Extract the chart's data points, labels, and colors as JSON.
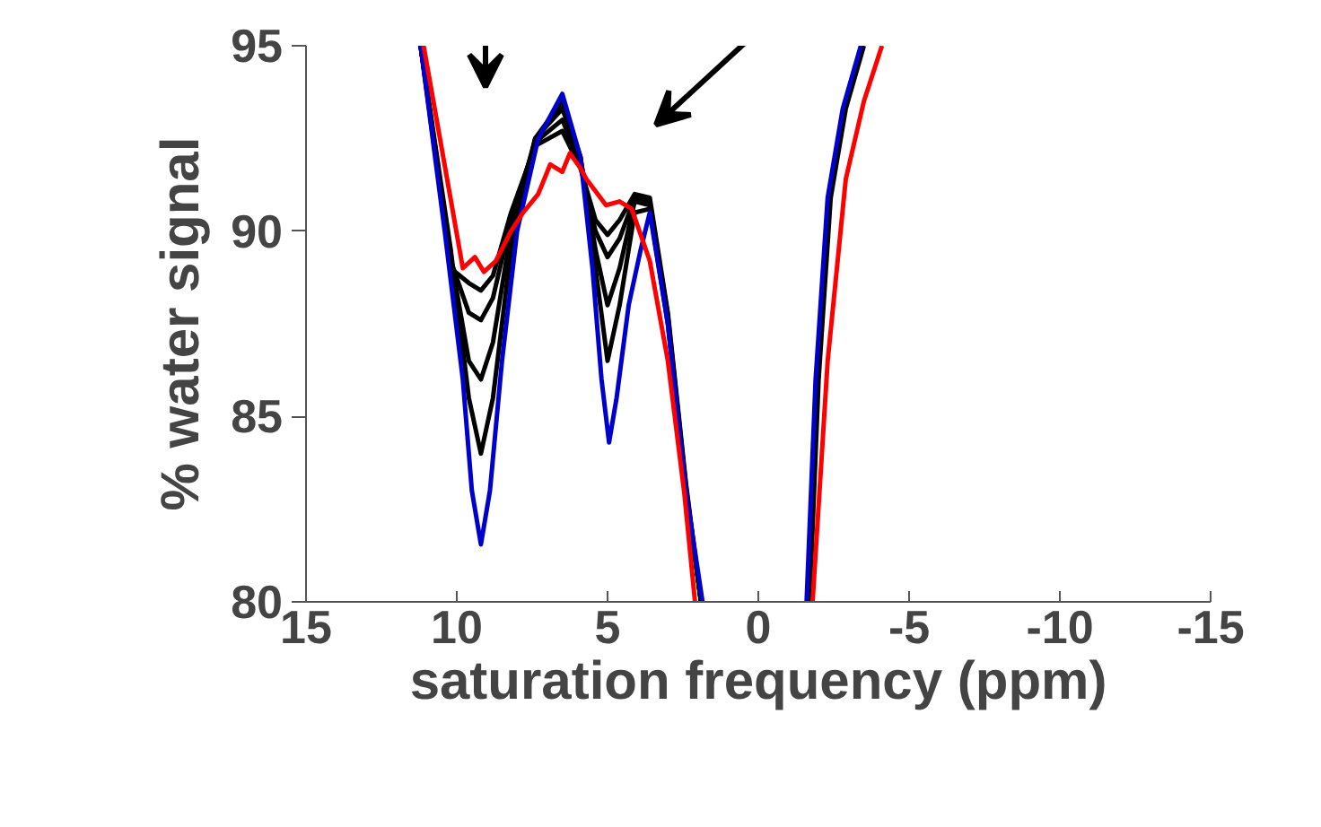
{
  "chart_data": {
    "type": "line",
    "xlabel": "saturation frequency (ppm)",
    "ylabel": "% water signal",
    "xlim": [
      15,
      -15
    ],
    "ylim": [
      80,
      95
    ],
    "xticks": [
      15,
      10,
      5,
      0,
      -5,
      -10,
      -15
    ],
    "yticks": [
      80,
      85,
      90,
      95
    ],
    "grid": false,
    "marker": "none",
    "line_style": "solid",
    "series": [
      {
        "color": "#000000",
        "x": [
          11.2,
          10.2,
          9.6,
          9.2,
          8.8,
          8.2,
          7.4,
          6.5,
          5.9,
          5.4,
          5.0,
          4.6,
          4.1,
          3.6,
          3.0,
          2.4,
          1.9
        ],
        "values": [
          95,
          89.5,
          85.5,
          84.0,
          85.5,
          89.5,
          92.5,
          93.5,
          92.0,
          89.0,
          86.5,
          88.0,
          90.5,
          90.6,
          87.5,
          83.0,
          80
        ]
      },
      {
        "color": "#000000",
        "x": [
          11.2,
          10.2,
          9.6,
          9.2,
          8.8,
          8.2,
          7.4,
          6.5,
          5.9,
          5.4,
          5.0,
          4.6,
          4.1,
          3.6,
          3.0,
          2.4,
          1.9
        ],
        "values": [
          95,
          89.3,
          86.5,
          86.0,
          87.0,
          90.0,
          92.5,
          93.3,
          92.0,
          89.5,
          88.0,
          89.0,
          90.8,
          90.7,
          87.6,
          83.0,
          80
        ]
      },
      {
        "color": "#000000",
        "x": [
          11.2,
          10.2,
          9.6,
          9.2,
          8.8,
          8.2,
          7.4,
          6.5,
          5.9,
          5.4,
          5.0,
          4.6,
          4.1,
          3.6,
          3.0,
          2.4,
          1.9
        ],
        "values": [
          95,
          89.2,
          87.8,
          87.6,
          88.2,
          90.3,
          92.4,
          93.0,
          91.8,
          90.0,
          89.3,
          89.8,
          90.9,
          90.8,
          87.7,
          83.1,
          80
        ]
      },
      {
        "color": "#000000",
        "x": [
          11.2,
          10.2,
          9.6,
          9.2,
          8.8,
          8.2,
          7.4,
          6.5,
          5.9,
          5.4,
          5.0,
          4.6,
          4.1,
          3.6,
          3.0,
          2.4,
          1.9
        ],
        "values": [
          95,
          89.0,
          88.6,
          88.4,
          88.8,
          90.5,
          92.3,
          92.7,
          91.7,
          90.3,
          89.9,
          90.3,
          91.0,
          90.9,
          87.8,
          83.2,
          80
        ]
      },
      {
        "color": "#000000",
        "x": [
          -1.7,
          -2.0,
          -2.4,
          -2.9,
          -3.5
        ],
        "values": [
          80,
          86.0,
          90.9,
          93.3,
          95
        ]
      },
      {
        "color": "#0000cc",
        "x": [
          11.2,
          10.4,
          9.8,
          9.5,
          9.2,
          8.9,
          8.5,
          8.0,
          7.3,
          6.5,
          5.9,
          5.5,
          5.2,
          4.95,
          4.7,
          4.3,
          3.9,
          3.6,
          3.0,
          2.4,
          1.85
        ],
        "values": [
          95,
          90.0,
          86.0,
          83.0,
          81.55,
          83.0,
          86.5,
          90.0,
          92.5,
          93.7,
          92.0,
          89.0,
          86.0,
          84.3,
          85.5,
          88.0,
          89.5,
          90.5,
          87.5,
          83.0,
          80
        ]
      },
      {
        "color": "#0000cc",
        "x": [
          -1.6,
          -1.9,
          -2.3,
          -2.8,
          -3.4
        ],
        "values": [
          80,
          86.0,
          90.9,
          93.3,
          95
        ]
      },
      {
        "color": "#ff0000",
        "x": [
          11.1,
          9.8,
          9.4,
          9.1,
          8.7,
          8.2,
          7.8,
          7.3,
          6.9,
          6.5,
          6.25,
          5.9,
          5.7,
          5.05,
          4.6,
          4.2,
          3.6,
          3.0,
          2.45,
          2.1
        ],
        "values": [
          95,
          89.0,
          89.3,
          88.9,
          89.2,
          90.0,
          90.5,
          91.0,
          91.8,
          91.6,
          92.1,
          91.7,
          91.4,
          90.7,
          90.8,
          90.6,
          89.2,
          86.5,
          82.9,
          80
        ]
      },
      {
        "color": "#ff0000",
        "x": [
          -1.8,
          -2.3,
          -2.9,
          -3.5,
          -4.1
        ],
        "values": [
          80,
          86.5,
          91.4,
          93.5,
          95
        ]
      }
    ]
  }
}
